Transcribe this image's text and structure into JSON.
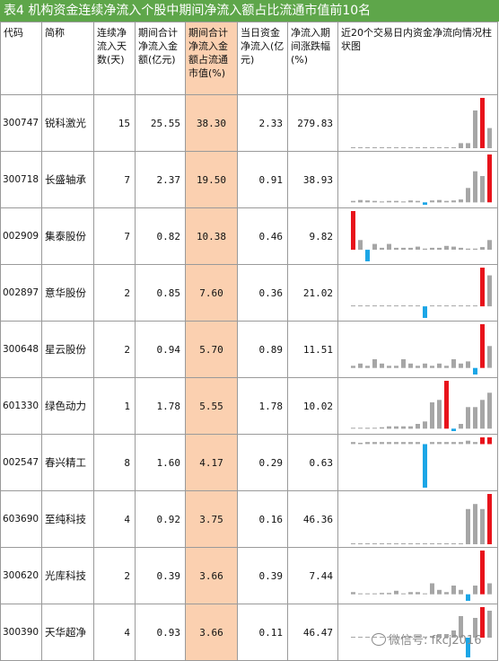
{
  "title": "表4  机构资金连续净流入个股中期间净流入额占比流通市值前10名",
  "headers": [
    "代码",
    "简称",
    "连续净流入天数(天)",
    "期间合计净流入金额(亿元)",
    "期间合计净流入金额占流通市值(%)",
    "当日资金净流入(亿元)",
    "净流入期间涨跌幅(%)",
    "近20个交易日内资金净流向情况柱状图"
  ],
  "rows": [
    {
      "code": "300747",
      "name": "锐科激光",
      "days": "15",
      "amount": "25.55",
      "ratio": "38.30",
      "today": "2.33",
      "change": "279.83",
      "bars": [
        0,
        0,
        0,
        0,
        0,
        0,
        0,
        0,
        0,
        0,
        0,
        0,
        0,
        0,
        0,
        0.1,
        0.1,
        0.75,
        1.0,
        0.4
      ]
    },
    {
      "code": "300718",
      "name": "长盛轴承",
      "days": "7",
      "amount": "2.37",
      "ratio": "19.50",
      "today": "0.91",
      "change": "38.93",
      "bars": [
        0.03,
        0.05,
        0.04,
        0.03,
        0.02,
        0.03,
        0.03,
        0.02,
        0.04,
        0.03,
        -0.05,
        0.04,
        0.05,
        0.03,
        0.04,
        0.06,
        0.3,
        0.65,
        0.55,
        1.0
      ]
    },
    {
      "code": "002909",
      "name": "集泰股份",
      "days": "7",
      "amount": "0.82",
      "ratio": "10.38",
      "today": "0.46",
      "change": "9.82",
      "bars": [
        1.0,
        0.25,
        -0.3,
        0.15,
        0.05,
        0.15,
        0.05,
        0.05,
        0.05,
        0.08,
        0.03,
        0.05,
        0.05,
        0.1,
        0.08,
        0.05,
        0.03,
        0.03,
        0.07,
        0.25
      ]
    },
    {
      "code": "002897",
      "name": "意华股份",
      "days": "2",
      "amount": "0.85",
      "ratio": "7.60",
      "today": "0.36",
      "change": "21.02",
      "bars": [
        0.02,
        0.02,
        0.02,
        0.02,
        0.02,
        0.02,
        0.02,
        0.02,
        0.02,
        0.02,
        -0.3,
        0.02,
        0.02,
        0.02,
        0.02,
        0.02,
        0.02,
        0.02,
        1.0,
        0.8
      ]
    },
    {
      "code": "300648",
      "name": "星云股份",
      "days": "2",
      "amount": "0.94",
      "ratio": "5.70",
      "today": "0.89",
      "change": "11.51",
      "bars": [
        0.05,
        0.1,
        0.05,
        0.2,
        0.1,
        0.05,
        0.05,
        0.2,
        0.1,
        0.05,
        0.1,
        0.05,
        0.1,
        0.05,
        0.2,
        0.1,
        0.15,
        -0.15,
        1.0,
        0.5
      ]
    },
    {
      "code": "601330",
      "name": "绿色动力",
      "days": "1",
      "amount": "1.78",
      "ratio": "5.55",
      "today": "1.78",
      "change": "10.02",
      "bars": [
        0,
        0,
        0.02,
        0,
        0.03,
        0.05,
        0.05,
        0.05,
        0.05,
        0.1,
        0.15,
        0.55,
        0.6,
        1.0,
        -0.05,
        0.1,
        0.45,
        0.45,
        0.6,
        0.75
      ]
    },
    {
      "code": "002547",
      "name": "春兴精工",
      "days": "8",
      "amount": "1.60",
      "ratio": "4.17",
      "today": "0.29",
      "change": "0.63",
      "bars": [
        0.03,
        0.02,
        0.03,
        0.03,
        0.03,
        0.03,
        0.03,
        0.03,
        0.03,
        0.03,
        -0.65,
        0.03,
        0.03,
        0.03,
        0.03,
        0.03,
        0.05,
        0.03,
        0.1,
        0.1
      ]
    },
    {
      "code": "603690",
      "name": "至纯科技",
      "days": "4",
      "amount": "0.92",
      "ratio": "3.75",
      "today": "0.16",
      "change": "46.36",
      "bars": [
        0,
        0,
        0,
        0,
        0,
        0,
        0,
        0,
        0,
        0,
        0,
        0,
        0,
        0,
        0,
        0,
        0.7,
        0.8,
        0.7,
        1.0
      ]
    },
    {
      "code": "300620",
      "name": "光库科技",
      "days": "2",
      "amount": "0.39",
      "ratio": "3.66",
      "today": "0.39",
      "change": "7.44",
      "bars": [
        0.05,
        0,
        0,
        0,
        0.03,
        0.03,
        0.08,
        0,
        0.05,
        0.05,
        0,
        0.25,
        0.1,
        0.05,
        0.2,
        0.1,
        -0.15,
        0.2,
        1.0,
        0.25
      ]
    },
    {
      "code": "300390",
      "name": "天华超净",
      "days": "4",
      "amount": "0.93",
      "ratio": "3.66",
      "today": "0.11",
      "change": "46.47",
      "bars": [
        0,
        0,
        0,
        0,
        0,
        0,
        0,
        0,
        0,
        0.05,
        0.03,
        0.05,
        0.1,
        0.1,
        0.2,
        0.6,
        -0.55,
        0.55,
        0.85,
        0.75
      ]
    }
  ],
  "colors": {
    "positive_large": "#e8131b",
    "positive": "#a6a6a6",
    "negative": "#1ca6e6",
    "highlight": "#fbd0b0",
    "title_bg": "#5ea64a"
  },
  "watermark": "微信号: fkcj2016"
}
